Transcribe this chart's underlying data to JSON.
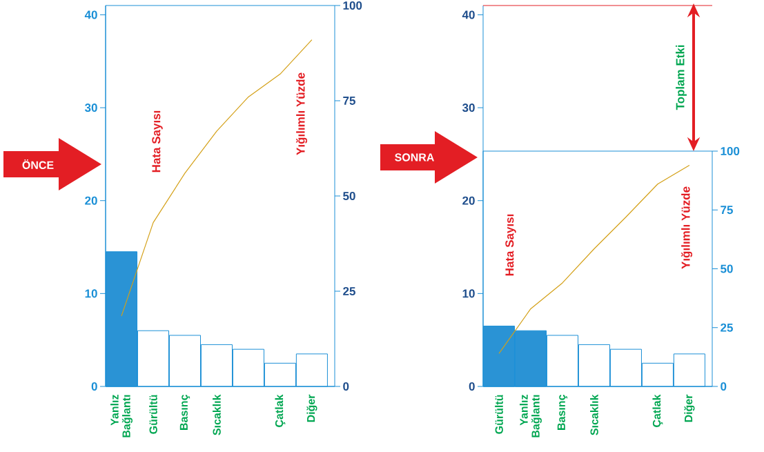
{
  "chart_data": [
    {
      "type": "bar",
      "categories": [
        "Yanlız Bağlantı",
        "Gürültü",
        "Basınç",
        "Sıcaklık",
        null,
        "Çatlak",
        "Diğer"
      ],
      "series": [
        {
          "values": [
            14.5,
            6,
            5.5,
            4.5,
            4,
            2.5,
            3.5
          ],
          "colors": [
            "#2a93d5",
            "#ffffff",
            "#ffffff",
            "#ffffff",
            "#ffffff",
            "#ffffff",
            "#ffffff"
          ]
        },
        {
          "type": "line",
          "axis": "y2",
          "color": "#d4a017",
          "values": [
            18.5,
            43,
            56,
            67,
            76,
            82,
            91
          ]
        }
      ],
      "ylabel": "Hata Sayısı",
      "y2label": "Yığılımlı Yüzde",
      "ylim": [
        0,
        41
      ],
      "yticks": [
        0,
        10,
        20,
        30,
        40
      ],
      "y2lim": [
        0,
        100
      ],
      "y2ticks": [
        0,
        25,
        50,
        75,
        100
      ],
      "annotations": [
        "ÖNCE"
      ]
    },
    {
      "type": "bar",
      "categories": [
        "Gürültü",
        "Yanlız Bağlantı",
        "Basınç",
        "Sıcaklık",
        null,
        "Çatlak",
        "Diğer"
      ],
      "series": [
        {
          "values": [
            6.5,
            6,
            5.5,
            4.5,
            4,
            2.5,
            3.5
          ],
          "colors": [
            "#2a93d5",
            "#2a93d5",
            "#ffffff",
            "#ffffff",
            "#ffffff",
            "#ffffff",
            "#ffffff"
          ]
        },
        {
          "type": "line",
          "axis": "y2",
          "color": "#d4a017",
          "values": [
            14,
            33,
            44,
            58.5,
            72,
            86,
            94
          ]
        }
      ],
      "ylabel": "Hata Sayısı",
      "y2label": "Yığılımlı Yüzde",
      "ylim": [
        0,
        41
      ],
      "yticks": [
        0,
        10,
        20,
        30,
        40
      ],
      "y2lim": [
        0,
        100
      ],
      "y2ticks": [
        0,
        25,
        50,
        75,
        100
      ],
      "ref_lines": [
        {
          "axis": "y",
          "value": 41,
          "color": "#e31e24"
        }
      ],
      "annotations": [
        "SONRA",
        "Toplam Etki"
      ]
    }
  ]
}
